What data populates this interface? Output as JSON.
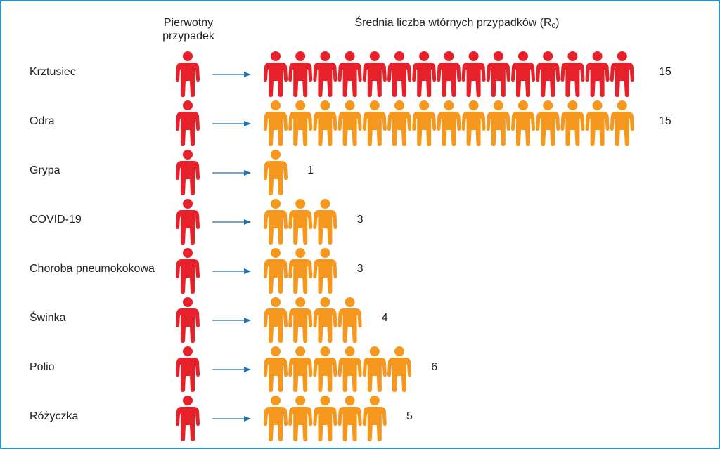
{
  "header": {
    "primary": "Pierwotny\nprzypadek",
    "secondary_prefix": "Średnia liczba wtórnych przypadków (R",
    "secondary_sub": "0",
    "secondary_suffix": ")"
  },
  "colors": {
    "primary": "#e8202a",
    "secondary_high": "#e8202a",
    "secondary": "#f5981d",
    "arrow": "#1f73b7",
    "frame": "#2e8fc9"
  },
  "chart_data": {
    "type": "pictogram",
    "categories": [
      "Krztusiec",
      "Odra",
      "Grypa",
      "COVID-19",
      "Choroba pneumokokowa",
      "Świnka",
      "Polio",
      "Różyczka"
    ],
    "values": [
      15,
      15,
      1,
      3,
      3,
      4,
      6,
      5
    ],
    "value_labels": [
      "15",
      "15",
      "1",
      "3",
      "3",
      "4",
      "6",
      "5"
    ],
    "icon_colors": [
      "red",
      "orange",
      "orange",
      "orange",
      "orange",
      "orange",
      "orange",
      "orange"
    ]
  }
}
